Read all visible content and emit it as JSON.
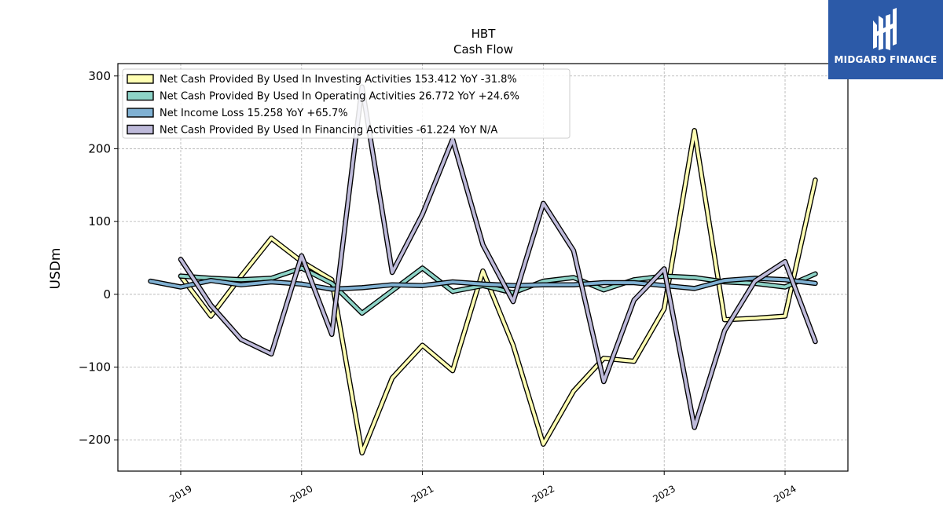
{
  "brand": {
    "name": "MIDGARD FINANCE",
    "color": "#2c5aa8"
  },
  "chart_data": {
    "type": "line",
    "title": "HBT",
    "subtitle": "Cash Flow",
    "xlabel": "",
    "ylabel": "USDm",
    "xlim": [
      2018.48,
      2024.52
    ],
    "ylim": [
      -243,
      317
    ],
    "x_ticks": [
      "2019",
      "2020",
      "2021",
      "2022",
      "2023",
      "2024"
    ],
    "y_ticks": [
      -200,
      -100,
      0,
      100,
      200,
      300
    ],
    "grid": true,
    "legend_position": "top-left",
    "series": [
      {
        "name": "Net Cash Provided By Used In Investing Activities",
        "legend": "Net Cash Provided By Used In Investing Activities  153.412 YoY -31.8%",
        "color": "#ffffb3",
        "x": [
          2019.0,
          2019.25,
          2019.5,
          2019.75,
          2020.0,
          2020.25,
          2020.5,
          2020.75,
          2021.0,
          2021.25,
          2021.5,
          2021.75,
          2022.0,
          2022.25,
          2022.5,
          2022.75,
          2023.0,
          2023.25,
          2023.5,
          2023.75,
          2024.0,
          2024.25
        ],
        "values": [
          25,
          -30,
          25,
          77,
          45,
          20,
          -218,
          -115,
          -70,
          -105,
          32,
          -70,
          -206,
          -133,
          -88,
          -92,
          -20,
          225,
          -35,
          -33,
          -30,
          157
        ]
      },
      {
        "name": "Net Cash Provided By Used In Operating Activities",
        "legend": "Net Cash Provided By Used In Operating Activities  26.772 YoY +24.6%",
        "color": "#8dd3c7",
        "x": [
          2019.0,
          2019.25,
          2019.5,
          2019.75,
          2020.0,
          2020.25,
          2020.5,
          2020.75,
          2021.0,
          2021.25,
          2021.5,
          2021.75,
          2022.0,
          2022.25,
          2022.5,
          2022.75,
          2023.0,
          2023.25,
          2023.5,
          2023.75,
          2024.0,
          2024.25
        ],
        "values": [
          25,
          22,
          20,
          22,
          36,
          15,
          -26,
          5,
          36,
          4,
          12,
          2,
          18,
          23,
          6,
          20,
          25,
          23,
          17,
          15,
          10,
          28
        ]
      },
      {
        "name": "Net Income Loss",
        "legend": "Net Income Loss  15.258 YoY +65.7%",
        "color": "#80b1d3",
        "x": [
          2018.75,
          2019.0,
          2019.25,
          2019.5,
          2019.75,
          2020.0,
          2020.25,
          2020.5,
          2020.75,
          2021.0,
          2021.25,
          2021.5,
          2021.75,
          2022.0,
          2022.25,
          2022.5,
          2022.75,
          2023.0,
          2023.25,
          2023.5,
          2023.75,
          2024.0,
          2024.25
        ],
        "values": [
          18,
          10,
          19,
          13,
          17,
          14,
          7,
          9,
          13,
          12,
          17,
          14,
          12,
          13,
          13,
          16,
          16,
          12,
          8,
          19,
          22,
          20,
          15
        ]
      },
      {
        "name": "Net Cash Provided By Used In Financing Activities",
        "legend": "Net Cash Provided By Used In Financing Activities  -61.224 YoY N/A",
        "color": "#bebada",
        "x": [
          2019.0,
          2019.25,
          2019.5,
          2019.75,
          2020.0,
          2020.25,
          2020.5,
          2020.75,
          2021.0,
          2021.25,
          2021.5,
          2021.75,
          2022.0,
          2022.25,
          2022.5,
          2022.75,
          2023.0,
          2023.25,
          2023.5,
          2023.75,
          2024.0,
          2024.25
        ],
        "values": [
          48,
          -15,
          -62,
          -82,
          53,
          -55,
          285,
          30,
          110,
          213,
          68,
          -10,
          125,
          60,
          -120,
          -8,
          35,
          -183,
          -50,
          18,
          45,
          -65
        ]
      }
    ]
  }
}
